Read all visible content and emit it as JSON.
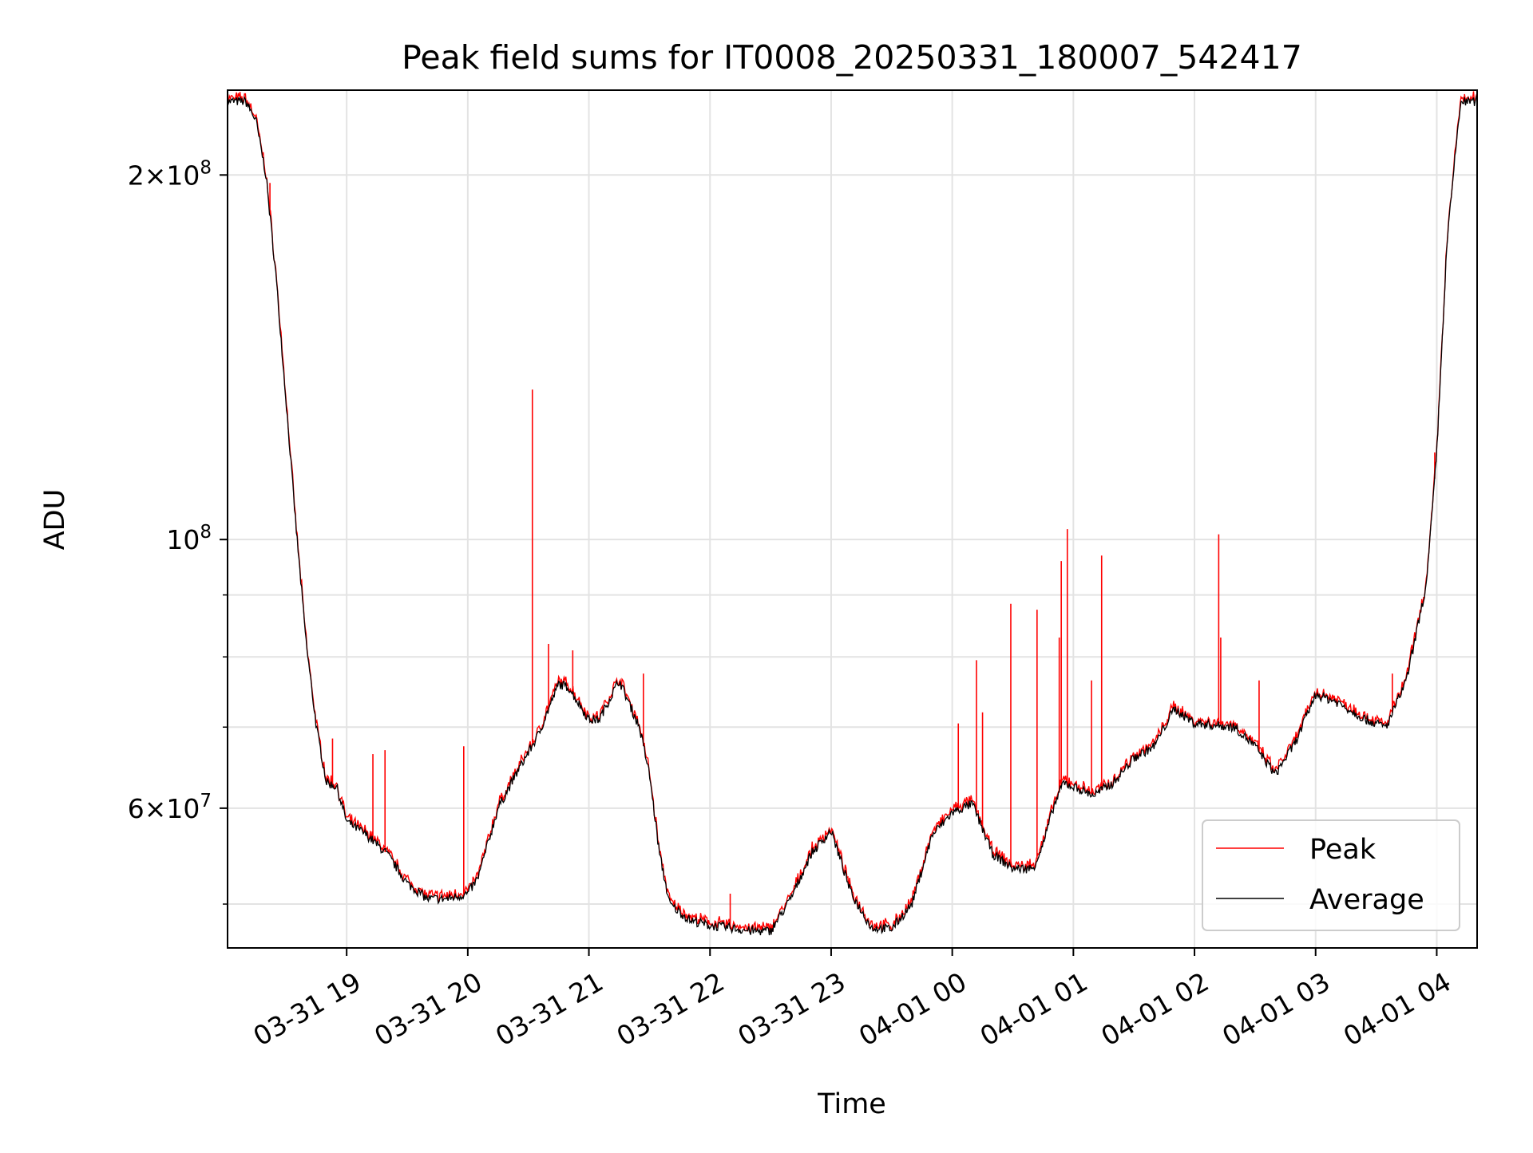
{
  "chart_data": {
    "type": "line",
    "title": "Peak field sums for IT0008_20250331_180007_542417",
    "xlabel": "Time",
    "ylabel": "ADU",
    "y_scale": "log",
    "ylim": [
      46000000,
      235000000
    ],
    "xlim": [
      "2025-03-31 18:01",
      "2025-04-01 04:20"
    ],
    "grid": true,
    "legend_position": "lower-right",
    "x_ticks": [
      "03-31 19",
      "03-31 20",
      "03-31 21",
      "03-31 22",
      "03-31 23",
      "04-01 00",
      "04-01 01",
      "04-01 02",
      "04-01 03",
      "04-01 04"
    ],
    "x_tick_times": [
      "2025-03-31 19:00",
      "2025-03-31 20:00",
      "2025-03-31 21:00",
      "2025-03-31 22:00",
      "2025-03-31 23:00",
      "2025-04-01 00:00",
      "2025-04-01 01:00",
      "2025-04-01 02:00",
      "2025-04-01 03:00",
      "2025-04-01 04:00"
    ],
    "y_major_ticks": [
      {
        "value": 200000000,
        "mantissa": "2",
        "exponent": "8"
      },
      {
        "value": 100000000,
        "mantissa": "",
        "exponent": "8"
      },
      {
        "value": 60000000,
        "mantissa": "6",
        "exponent": "7"
      }
    ],
    "y_minor_ticks": [
      50000000,
      70000000,
      80000000,
      90000000
    ],
    "series": [
      {
        "name": "Peak",
        "color": "#ff0000",
        "spikes": [
          {
            "t": "2025-03-31 18:22",
            "y": 197000000
          },
          {
            "t": "2025-03-31 18:53",
            "y": 68500000
          },
          {
            "t": "2025-03-31 19:13",
            "y": 66500000
          },
          {
            "t": "2025-03-31 19:19",
            "y": 67000000
          },
          {
            "t": "2025-03-31 19:58",
            "y": 67500000
          },
          {
            "t": "2025-03-31 20:32",
            "y": 133000000
          },
          {
            "t": "2025-03-31 20:40",
            "y": 82000000
          },
          {
            "t": "2025-03-31 20:52",
            "y": 81000000
          },
          {
            "t": "2025-03-31 21:27",
            "y": 77500000
          },
          {
            "t": "2025-03-31 22:10",
            "y": 51000000
          },
          {
            "t": "2025-04-01 00:03",
            "y": 70500000
          },
          {
            "t": "2025-04-01 00:12",
            "y": 79500000
          },
          {
            "t": "2025-04-01 00:15",
            "y": 72000000
          },
          {
            "t": "2025-04-01 00:29",
            "y": 88500000
          },
          {
            "t": "2025-04-01 00:42",
            "y": 87500000
          },
          {
            "t": "2025-04-01 00:53",
            "y": 83000000
          },
          {
            "t": "2025-04-01 00:54",
            "y": 96000000
          },
          {
            "t": "2025-04-01 00:57",
            "y": 102000000
          },
          {
            "t": "2025-04-01 01:09",
            "y": 76500000
          },
          {
            "t": "2025-04-01 01:14",
            "y": 97000000
          },
          {
            "t": "2025-04-01 02:12",
            "y": 101000000
          },
          {
            "t": "2025-04-01 02:13",
            "y": 83000000
          },
          {
            "t": "2025-04-01 02:32",
            "y": 76500000
          },
          {
            "t": "2025-04-01 03:38",
            "y": 77500000
          },
          {
            "t": "2025-04-01 03:59",
            "y": 118000000
          }
        ]
      },
      {
        "name": "Average",
        "color": "#000000",
        "points": [
          [
            "2025-03-31 18:00",
            230000000
          ],
          [
            "2025-03-31 18:10",
            230000000
          ],
          [
            "2025-03-31 18:15",
            222000000
          ],
          [
            "2025-03-31 18:20",
            200000000
          ],
          [
            "2025-03-31 18:25",
            165000000
          ],
          [
            "2025-03-31 18:30",
            130000000
          ],
          [
            "2025-03-31 18:35",
            102000000
          ],
          [
            "2025-03-31 18:40",
            82000000
          ],
          [
            "2025-03-31 18:45",
            70000000
          ],
          [
            "2025-03-31 18:50",
            63000000
          ],
          [
            "2025-03-31 18:55",
            62500000
          ],
          [
            "2025-03-31 19:00",
            58500000
          ],
          [
            "2025-03-31 19:10",
            57000000
          ],
          [
            "2025-03-31 19:20",
            55000000
          ],
          [
            "2025-03-31 19:30",
            52000000
          ],
          [
            "2025-03-31 19:40",
            50500000
          ],
          [
            "2025-03-31 19:50",
            50500000
          ],
          [
            "2025-03-31 20:00",
            51000000
          ],
          [
            "2025-03-31 20:05",
            52500000
          ],
          [
            "2025-03-31 20:15",
            60000000
          ],
          [
            "2025-03-31 20:25",
            64500000
          ],
          [
            "2025-03-31 20:35",
            69000000
          ],
          [
            "2025-03-31 20:45",
            76000000
          ],
          [
            "2025-03-31 20:50",
            75500000
          ],
          [
            "2025-03-31 21:00",
            71000000
          ],
          [
            "2025-03-31 21:05",
            71000000
          ],
          [
            "2025-03-31 21:15",
            76500000
          ],
          [
            "2025-03-31 21:25",
            70000000
          ],
          [
            "2025-03-31 21:30",
            64000000
          ],
          [
            "2025-03-31 21:35",
            55000000
          ],
          [
            "2025-03-31 21:40",
            50000000
          ],
          [
            "2025-03-31 21:50",
            48500000
          ],
          [
            "2025-03-31 22:00",
            48000000
          ],
          [
            "2025-03-31 22:10",
            47800000
          ],
          [
            "2025-03-31 22:20",
            47500000
          ],
          [
            "2025-03-31 22:30",
            47500000
          ],
          [
            "2025-03-31 22:40",
            50500000
          ],
          [
            "2025-03-31 22:50",
            55000000
          ],
          [
            "2025-03-31 23:00",
            57500000
          ],
          [
            "2025-03-31 23:10",
            51000000
          ],
          [
            "2025-03-31 23:20",
            47800000
          ],
          [
            "2025-03-31 23:30",
            47700000
          ],
          [
            "2025-03-31 23:40",
            50000000
          ],
          [
            "2025-03-31 23:50",
            57000000
          ],
          [
            "2025-04-01 00:00",
            59500000
          ],
          [
            "2025-04-01 00:10",
            60500000
          ],
          [
            "2025-04-01 00:20",
            55000000
          ],
          [
            "2025-04-01 00:30",
            53500000
          ],
          [
            "2025-04-01 00:40",
            53500000
          ],
          [
            "2025-04-01 00:45",
            56000000
          ],
          [
            "2025-04-01 00:50",
            60000000
          ],
          [
            "2025-04-01 00:55",
            63000000
          ],
          [
            "2025-04-01 01:10",
            61500000
          ],
          [
            "2025-04-01 01:20",
            63000000
          ],
          [
            "2025-04-01 01:30",
            66000000
          ],
          [
            "2025-04-01 01:40",
            67500000
          ],
          [
            "2025-04-01 01:50",
            72500000
          ],
          [
            "2025-04-01 02:00",
            70500000
          ],
          [
            "2025-04-01 02:20",
            70000000
          ],
          [
            "2025-04-01 02:30",
            67500000
          ],
          [
            "2025-04-01 02:40",
            64000000
          ],
          [
            "2025-04-01 02:50",
            68000000
          ],
          [
            "2025-04-01 03:00",
            74500000
          ],
          [
            "2025-04-01 03:10",
            73500000
          ],
          [
            "2025-04-01 03:25",
            71000000
          ],
          [
            "2025-04-01 03:35",
            70000000
          ],
          [
            "2025-04-01 03:45",
            76500000
          ],
          [
            "2025-04-01 03:55",
            92000000
          ],
          [
            "2025-04-01 04:00",
            118000000
          ],
          [
            "2025-04-01 04:05",
            175000000
          ],
          [
            "2025-04-01 04:10",
            215000000
          ],
          [
            "2025-04-01 04:12",
            230000000
          ],
          [
            "2025-04-01 04:20",
            230000000
          ]
        ]
      }
    ]
  }
}
